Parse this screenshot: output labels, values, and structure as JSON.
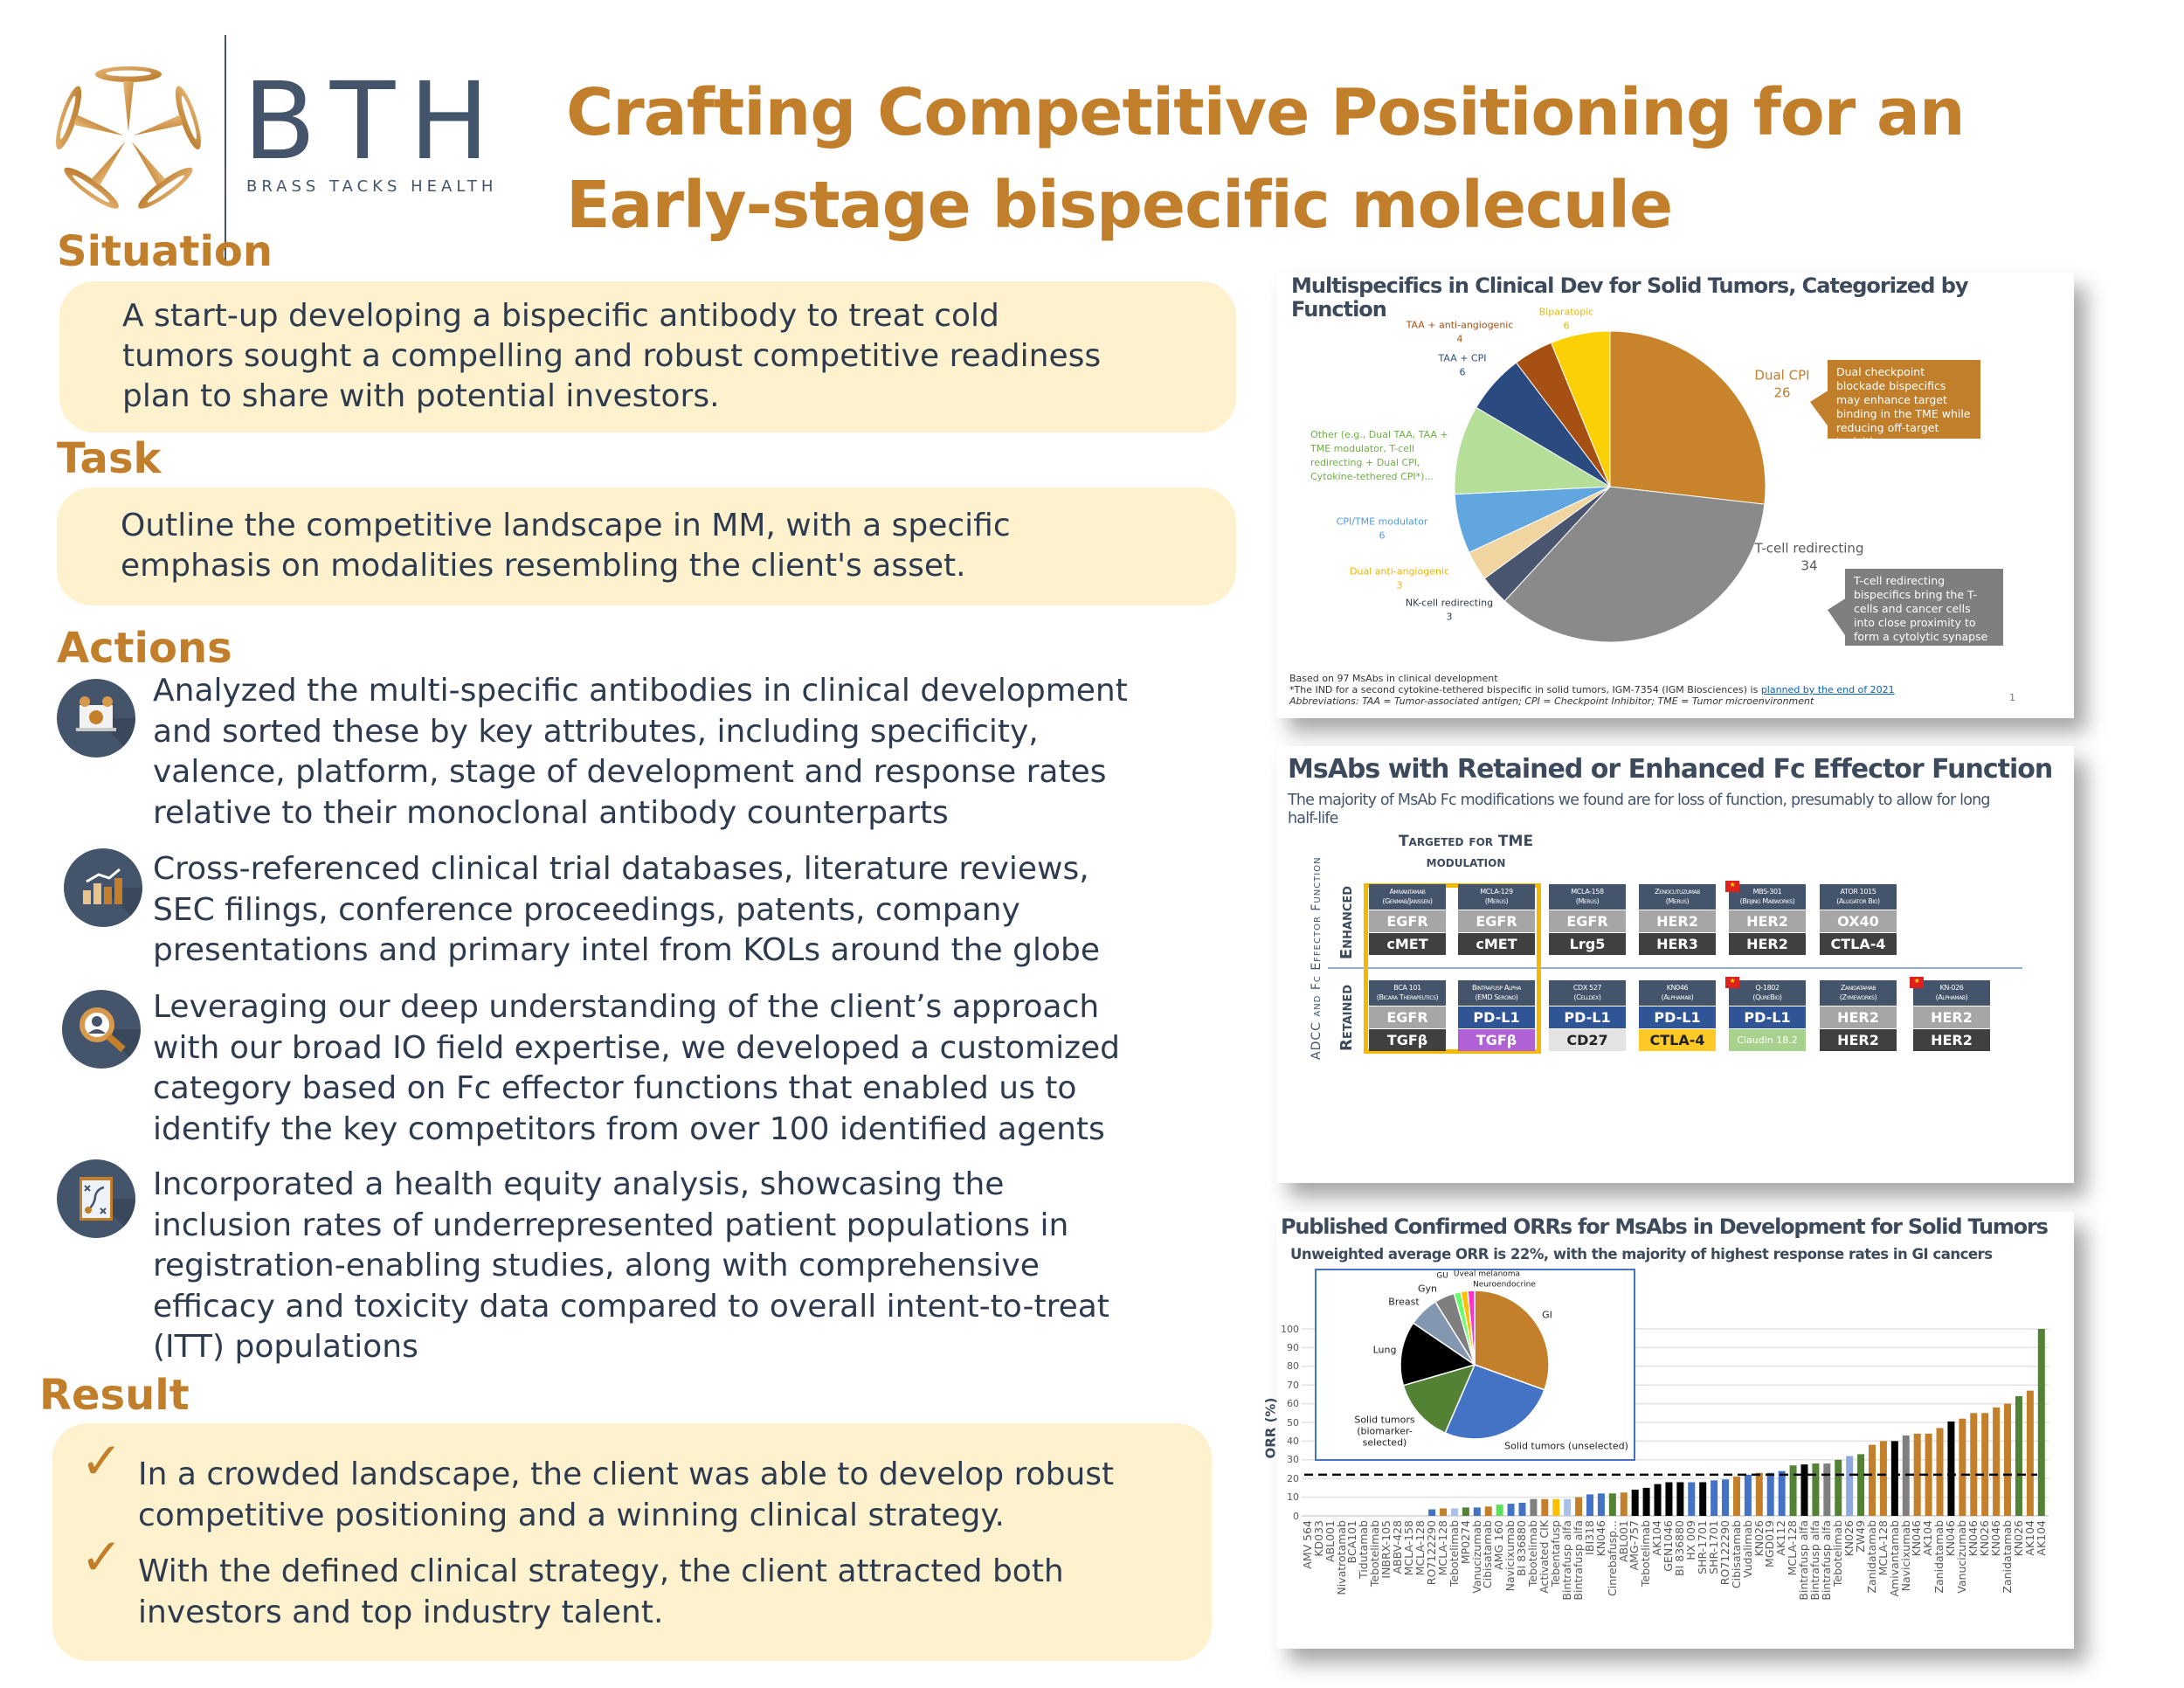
{
  "logo": {
    "letters": "BTH",
    "tagline": "BRASS TACKS HEALTH"
  },
  "title": {
    "line1": "Crafting Competitive Positioning for an",
    "line2": "Early-stage bispecific molecule"
  },
  "situation": {
    "heading": "Situation",
    "lines": [
      "A start-up developing a bispecific antibody to treat cold",
      "tumors sought a compelling and robust competitive readiness",
      "plan to share with potential investors."
    ]
  },
  "task": {
    "heading": "Task",
    "lines": [
      "Outline the competitive landscape in MM, with a specific",
      "emphasis on modalities resembling the client's asset."
    ]
  },
  "actions": {
    "heading": "Actions",
    "items": [
      {
        "icon": "presentation-network-icon",
        "lines": [
          "Analyzed the multi-specific antibodies in clinical development",
          "and sorted these by key attributes, including specificity,",
          "valence, platform, stage of development and response rates",
          "relative to their monoclonal antibody counterparts"
        ]
      },
      {
        "icon": "bar-chart-trend-icon",
        "lines": [
          "Cross-referenced clinical trial databases, literature reviews,",
          "SEC filings, conference proceedings, patents, company",
          "presentations and primary intel from KOLs around the globe"
        ]
      },
      {
        "icon": "magnifier-person-icon",
        "lines": [
          "Leveraging our deep understanding of the client’s approach",
          "with our broad IO field expertise, we developed a customized",
          "category based on Fc effector functions that enabled us to",
          "identify the key competitors from over 100 identified agents"
        ]
      },
      {
        "icon": "strategy-board-icon",
        "lines": [
          "Incorporated a health equity analysis, showcasing the",
          "inclusion rates of underrepresented patient populations in",
          "registration-enabling studies, along with comprehensive",
          "efficacy and toxicity data compared to overall intent-to-treat",
          "(ITT) populations"
        ]
      }
    ]
  },
  "result": {
    "heading": "Result",
    "items": [
      {
        "lines": [
          "In a crowded landscape, the client was able to develop robust",
          "competitive positioning and a winning clinical strategy."
        ]
      },
      {
        "lines": [
          "With the defined clinical strategy, the client attracted both",
          "investors and top industry talent."
        ]
      }
    ]
  },
  "panel1": {
    "title_line1": "Multispecifics in Clinical Dev for Solid Tumors, Categorized by",
    "title_line2": "Function",
    "callout_dual_cpi": "Dual checkpoint blockade bispecifics may enhance target binding in the TME while reducing off-target toxicities",
    "callout_tcell": "T-cell redirecting bispecifics bring the T-cells and cancer cells into close proximity to form a cytolytic synapse and promote tumor cell death.",
    "footnote1": "Based on 97 MsAbs in clinical development",
    "footnote2_pre": "*The IND for a second cytokine-tethered bispecific in solid tumors, IGM-7354 (IGM Biosciences) is ",
    "footnote2_link": "planned by the end of 2021",
    "footnote3": "Abbreviations: TAA = Tumor-associated antigen; CPI = Checkpoint Inhibitor; TME = Tumor microenvironment",
    "page_number": "1"
  },
  "panel2": {
    "title": "MsAbs with Retained or Enhanced Fc Effector Function",
    "subtitle_line1": "The majority of MsAb Fc modifications we found are for loss of function, presumably to allow for long",
    "subtitle_line2": "half-life",
    "tme_label_line1": "Targeted for TME",
    "tme_label_line2": "modulation",
    "axis_label": "ADCC and Fc Effector Function",
    "row_enhanced": "Enhanced",
    "row_retained": "Retained",
    "enhanced": [
      {
        "name": "Amivantamab",
        "company": "(Genmab/Janssen)",
        "top": "EGFR",
        "bottom": "cMET",
        "flag": false,
        "mid_bg": "#a6a6a6",
        "mid_fg": "#ffffff",
        "bot_bg": "#404040",
        "bot_fg": "#ffffff"
      },
      {
        "name": "MCLA-129",
        "company": "(Merus)",
        "top": "EGFR",
        "bottom": "cMET",
        "flag": false,
        "mid_bg": "#a6a6a6",
        "mid_fg": "#ffffff",
        "bot_bg": "#404040",
        "bot_fg": "#ffffff"
      },
      {
        "name": "MCLA-158",
        "company": "(Merus)",
        "top": "EGFR",
        "bottom": "Lrg5",
        "flag": false,
        "mid_bg": "#a6a6a6",
        "mid_fg": "#ffffff",
        "bot_bg": "#404040",
        "bot_fg": "#ffffff"
      },
      {
        "name": "Zenocutuzumab",
        "company": "(Merus)",
        "top": "HER2",
        "bottom": "HER3",
        "flag": false,
        "mid_bg": "#a6a6a6",
        "mid_fg": "#ffffff",
        "bot_bg": "#404040",
        "bot_fg": "#ffffff"
      },
      {
        "name": "MBS-301",
        "company": "(Beijing Mabworks)",
        "top": "HER2",
        "bottom": "HER2",
        "flag": true,
        "mid_bg": "#a6a6a6",
        "mid_fg": "#ffffff",
        "bot_bg": "#404040",
        "bot_fg": "#ffffff"
      },
      {
        "name": "ATOR 1015",
        "company": "(Alligator Bio)",
        "top": "OX40",
        "bottom": "CTLA-4",
        "flag": false,
        "mid_bg": "#a6a6a6",
        "mid_fg": "#ffffff",
        "bot_bg": "#404040",
        "bot_fg": "#ffffff"
      }
    ],
    "retained": [
      {
        "name": "BCA 101",
        "company": "(Bicara Therapeutics)",
        "top": "EGFR",
        "bottom": "TGFβ",
        "flag": false,
        "mid_bg": "#a6a6a6",
        "mid_fg": "#ffffff",
        "bot_bg": "#404040",
        "bot_fg": "#ffffff"
      },
      {
        "name": "Bintrafusp Alpha",
        "company": "(EMD Serono)",
        "top": "PD-L1",
        "bottom": "TGFβ",
        "flag": false,
        "mid_bg": "#2f5597",
        "mid_fg": "#ffffff",
        "bot_bg": "#b061d6",
        "bot_fg": "#ffffff"
      },
      {
        "name": "CDX 527",
        "company": "(Celldex)",
        "top": "PD-L1",
        "bottom": "CD27",
        "flag": false,
        "mid_bg": "#2f5597",
        "mid_fg": "#ffffff",
        "bot_bg": "#e3e3e3",
        "bot_fg": "#222222"
      },
      {
        "name": "KN046",
        "company": "(Alphamab)",
        "top": "PD-L1",
        "bottom": "CTLA-4",
        "flag": false,
        "mid_bg": "#2f5597",
        "mid_fg": "#ffffff",
        "bot_bg": "#ffc928",
        "bot_fg": "#222222"
      },
      {
        "name": "Q-1802",
        "company": "(QureBio)",
        "top": "PD-L1",
        "bottom": "Claudin 18.2",
        "flag": true,
        "mid_bg": "#2f5597",
        "mid_fg": "#ffffff",
        "bot_bg": "#a9d18e",
        "bot_fg": "#ffffff"
      },
      {
        "name": "Zanidatamab",
        "company": "(Zymeworks)",
        "top": "HER2",
        "bottom": "HER2",
        "flag": false,
        "mid_bg": "#a6a6a6",
        "mid_fg": "#ffffff",
        "bot_bg": "#404040",
        "bot_fg": "#ffffff"
      },
      {
        "name": "KN-026",
        "company": "(Alphamab)",
        "top": "HER2",
        "bottom": "HER2",
        "flag": true,
        "mid_bg": "#a6a6a6",
        "mid_fg": "#ffffff",
        "bot_bg": "#404040",
        "bot_fg": "#ffffff"
      }
    ]
  },
  "panel3": {
    "title": "Published Confirmed ORRs for MsAbs in Development for Solid Tumors",
    "subtitle": "Unweighted average ORR is 22%, with the majority of highest response rates in GI cancers"
  },
  "colors": {
    "accent": "#c17f2b",
    "text": "#2e3b4e",
    "box": "#fef1cd",
    "navy": "#44546a"
  },
  "chart_data": [
    {
      "type": "pie",
      "title": "Multispecifics in Clinical Dev for Solid Tumors, Categorized by Function",
      "slices": [
        {
          "label": "Dual CPI",
          "value": 26,
          "value_label": "26",
          "color": "#c8832b"
        },
        {
          "label": "T-cell redirecting",
          "value": 34,
          "value_label": "34",
          "color": "#8a8a8a"
        },
        {
          "label": "NK-cell redirecting",
          "value": 3,
          "value_label": "3",
          "color": "#4a5670"
        },
        {
          "label": "Dual anti-angiogenic",
          "value": 3,
          "value_label": "3",
          "color": "#f0d5a0"
        },
        {
          "label": "CPI/TME modulator",
          "value": 6,
          "value_label": "6",
          "color": "#62a6e0"
        },
        {
          "label": "Other (e.g., Dual TAA, TAA + TME modulator, T-cell redirecting + Dual CPI, Cytokine-tethered CPI*)...",
          "value": 9,
          "value_label": "",
          "color": "#b5de98"
        },
        {
          "label": "TAA + CPI",
          "value": 6,
          "value_label": "6",
          "color": "#2b4a80"
        },
        {
          "label": "TAA + anti-angiogenic",
          "value": 4,
          "value_label": "4",
          "color": "#a65014"
        },
        {
          "label": "Biparatopic",
          "value": 6,
          "value_label": "6",
          "color": "#fbd106"
        }
      ]
    },
    {
      "type": "bar",
      "title": "Published Confirmed ORRs for MsAbs in Development for Solid Tumors",
      "ylabel": "ORR (%)",
      "ylim": [
        0,
        100
      ],
      "yticks": [
        0,
        10,
        20,
        30,
        40,
        50,
        60,
        70,
        80,
        90,
        100
      ],
      "grid": true,
      "reference_line": {
        "value": 22,
        "style": "dashed"
      },
      "categories": [
        "AMV 564",
        "KD033",
        "ABL001",
        "Nivatrotamab",
        "BCA101",
        "Tidutamab",
        "Tebotelimab",
        "INBRX-105",
        "ABBV-428",
        "MCLA-158",
        "MCLA-128",
        "RO7122290",
        "MCLA-128",
        "Tebotelimab",
        "MP0274",
        "Vanucizumab",
        "Cibisatamab",
        "AMG 160",
        "Navicixumab",
        "BI 836880",
        "Tebotelimab",
        "Activated CIK",
        "Tebentafusp",
        "Bintrafusp alfa",
        "Bintrafusp alfa",
        "IBI318",
        "KN046",
        "Cinrebafusp...",
        "ABL001",
        "AMG-757",
        "Tebotelimab",
        "AK104",
        "GEN1046",
        "BI 836880",
        "HX 009",
        "SHR-1701",
        "SHR-1701",
        "RO7122290",
        "Cibisatamab",
        "Vudalimab",
        "KN026",
        "MGD019",
        "AK112",
        "MCLA-128",
        "Bintrafusp alfa",
        "Bintrafusp alfa",
        "Bintrafusp alfa",
        "Tebotelimab",
        "KN026",
        "ZW49",
        "Zanidatamab",
        "MCLA-128",
        "Amivantamab",
        "Navicixumab",
        "KN046",
        "AK104",
        "Zanidatamab",
        "KN046",
        "Vanucizumab",
        "KN046",
        "KN026",
        "KN046",
        "Zanidatamab",
        "KN026",
        "AK104",
        "AK104"
      ],
      "values": [
        0,
        0,
        0,
        0,
        0,
        0,
        0,
        0,
        0,
        0,
        0,
        3.5,
        4,
        4,
        4.5,
        4.5,
        5,
        6,
        6.5,
        7,
        9,
        9,
        9,
        9,
        10,
        11.5,
        12,
        12,
        12.5,
        14,
        15,
        17,
        18,
        18,
        18,
        18,
        19,
        19.5,
        21,
        22,
        23,
        23,
        24,
        27,
        27.5,
        28,
        28,
        30,
        32,
        33,
        38,
        40,
        40,
        43,
        44,
        44,
        47,
        50.5,
        52,
        55,
        55,
        58,
        60,
        64,
        67,
        100
      ],
      "colors": [
        "#ffffff",
        "#ffffff",
        "#ffffff",
        "#ffffff",
        "#ffffff",
        "#ffffff",
        "#ffffff",
        "#ffffff",
        "#ffffff",
        "#ffffff",
        "#ffffff",
        "#4472c4",
        "#c47f2a",
        "#a9c0e8",
        "#548235",
        "#4472c4",
        "#c47f2a",
        "#5be05b",
        "#4472c4",
        "#4472c4",
        "#7f7f7f",
        "#c47f2a",
        "#ffc000",
        "#a9c0e8",
        "#c47f2a",
        "#4472c4",
        "#4472c4",
        "#548235",
        "#c47f2a",
        "#000000",
        "#000000",
        "#000000",
        "#000000",
        "#000000",
        "#4472c4",
        "#000000",
        "#4472c4",
        "#4472c4",
        "#c47f2a",
        "#4472c4",
        "#c47f2a",
        "#4472c4",
        "#4472c4",
        "#548235",
        "#000000",
        "#548235",
        "#7f7f7f",
        "#548235",
        "#8faadc",
        "#548235",
        "#c47f2a",
        "#c47f2a",
        "#000000",
        "#7f7f7f",
        "#c47f2a",
        "#c47f2a",
        "#c47f2a",
        "#000000",
        "#c47f2a",
        "#c47f2a",
        "#c47f2a",
        "#c47f2a",
        "#c47f2a",
        "#548235",
        "#c47f2a",
        "#548235"
      ]
    },
    {
      "type": "pie",
      "title": "",
      "slices": [
        {
          "label": "GI",
          "value": 30.5,
          "color": "#c47f2a"
        },
        {
          "label": "Solid tumors (unselected)",
          "value": 26,
          "color": "#4472c4"
        },
        {
          "label": "Solid tumors (biomarker-selected)",
          "value": 14,
          "color": "#548235"
        },
        {
          "label": "Lung",
          "value": 14,
          "color": "#000000"
        },
        {
          "label": "Breast",
          "value": 6.6,
          "color": "#8497b0"
        },
        {
          "label": "Gyn",
          "value": 4.4,
          "color": "#7f7f7f"
        },
        {
          "label": "GU",
          "value": 1.5,
          "color": "#66ff66"
        },
        {
          "label": "Uveal melanoma",
          "value": 1.5,
          "color": "#ffc000"
        },
        {
          "label": "Neuroendocrine",
          "value": 1.5,
          "color": "#ff33cc"
        }
      ]
    }
  ]
}
